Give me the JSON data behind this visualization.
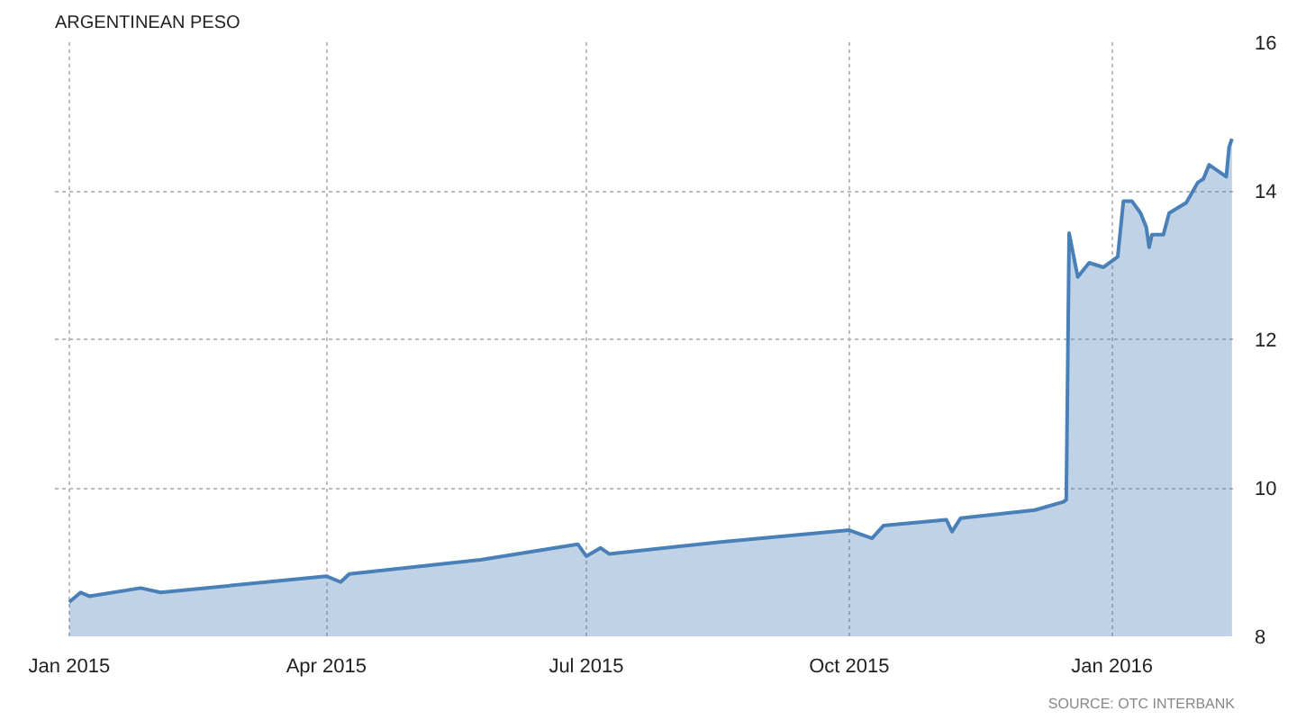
{
  "chart_data": {
    "type": "area",
    "title": "ARGENTINEAN PESO",
    "annotations": [
      "SOURCE: OTC INTERBANK"
    ],
    "x": [
      "2015-01-01",
      "2015-01-05",
      "2015-01-08",
      "2015-01-26",
      "2015-02-02",
      "2015-04-01",
      "2015-04-06",
      "2015-04-09",
      "2015-05-25",
      "2015-06-28",
      "2015-07-01",
      "2015-07-06",
      "2015-07-09",
      "2015-08-17",
      "2015-10-01",
      "2015-10-09",
      "2015-10-13",
      "2015-11-04",
      "2015-11-06",
      "2015-11-09",
      "2015-12-05",
      "2015-12-15",
      "2015-12-16",
      "2015-12-17",
      "2015-12-20",
      "2015-12-24",
      "2015-12-29",
      "2016-01-03",
      "2016-01-05",
      "2016-01-08",
      "2016-01-11",
      "2016-01-13",
      "2016-01-14",
      "2016-01-15",
      "2016-01-19",
      "2016-01-21",
      "2016-01-27",
      "2016-01-31",
      "2016-02-02",
      "2016-02-04",
      "2016-02-10",
      "2016-02-11",
      "2016-02-12"
    ],
    "series": [
      {
        "color": "#4a80b8",
        "values": [
          8.46,
          8.59,
          8.54,
          8.65,
          8.59,
          8.81,
          8.73,
          8.84,
          9.03,
          9.24,
          9.08,
          9.19,
          9.11,
          9.27,
          9.43,
          9.32,
          9.49,
          9.57,
          9.41,
          9.59,
          9.7,
          9.81,
          9.84,
          13.43,
          12.84,
          13.03,
          12.97,
          13.11,
          13.86,
          13.86,
          13.7,
          13.51,
          13.24,
          13.41,
          13.41,
          13.7,
          13.84,
          14.11,
          14.16,
          14.35,
          14.19,
          14.59,
          14.7
        ]
      }
    ],
    "xlim": [
      "2014-12-27",
      "2016-02-13"
    ],
    "ylim": [
      8,
      16
    ],
    "xticks": [
      {
        "value": "2015-01-01",
        "label": "Jan 2015"
      },
      {
        "value": "2015-04-01",
        "label": "Apr 2015"
      },
      {
        "value": "2015-07-01",
        "label": "Jul 2015"
      },
      {
        "value": "2015-10-01",
        "label": "Oct 2015"
      },
      {
        "value": "2016-01-01",
        "label": "Jan 2016"
      }
    ],
    "yticks": [
      8,
      10,
      12,
      14,
      16
    ],
    "grid": true
  }
}
